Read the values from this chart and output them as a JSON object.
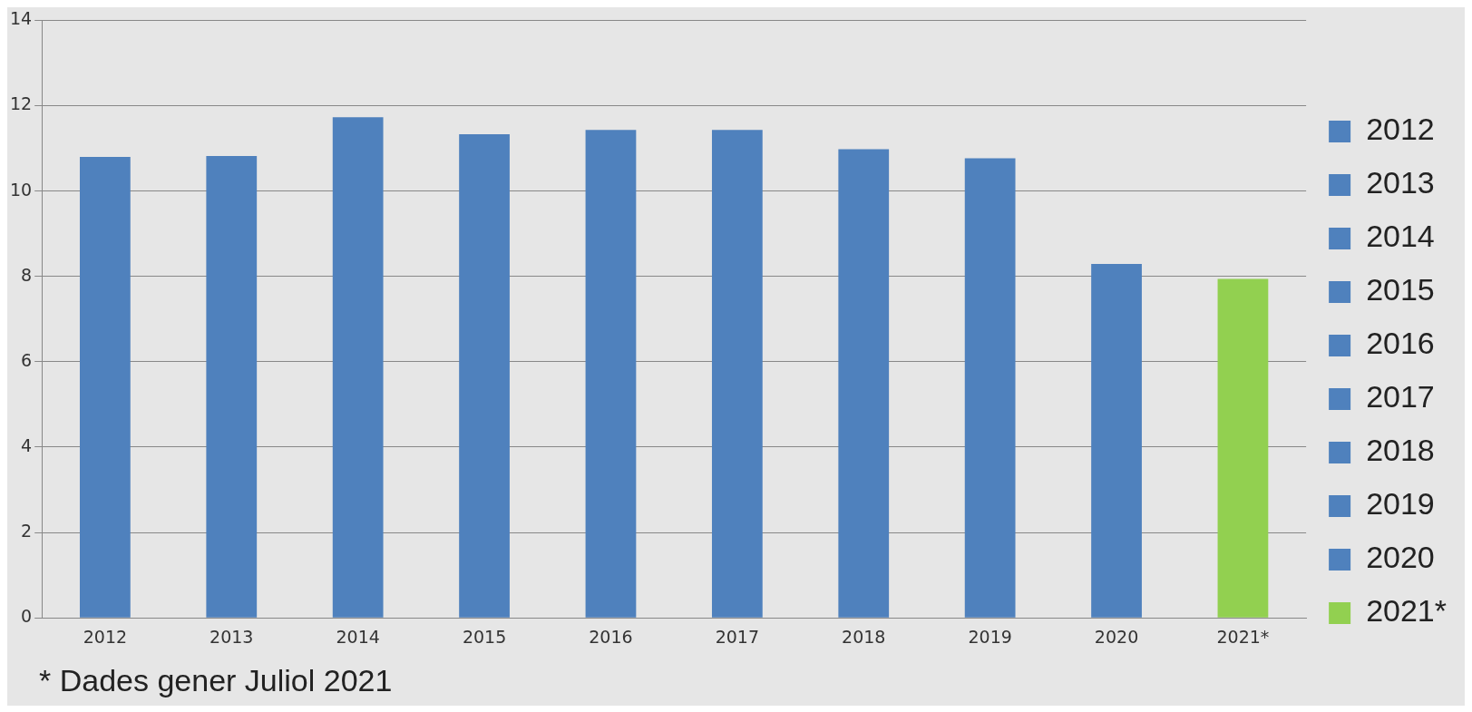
{
  "chart_data": {
    "type": "bar",
    "categories": [
      "2012",
      "2013",
      "2014",
      "2015",
      "2016",
      "2017",
      "2018",
      "2019",
      "2020",
      "2021*"
    ],
    "series": [
      {
        "name": "2012",
        "color": "#4f81bd",
        "values": [
          10.8,
          null,
          null,
          null,
          null,
          null,
          null,
          null,
          null,
          null
        ]
      },
      {
        "name": "2013",
        "color": "#4f81bd",
        "values": [
          null,
          10.82,
          null,
          null,
          null,
          null,
          null,
          null,
          null,
          null
        ]
      },
      {
        "name": "2014",
        "color": "#4f81bd",
        "values": [
          null,
          null,
          11.73,
          null,
          null,
          null,
          null,
          null,
          null,
          null
        ]
      },
      {
        "name": "2015",
        "color": "#4f81bd",
        "values": [
          null,
          null,
          null,
          11.33,
          null,
          null,
          null,
          null,
          null,
          null
        ]
      },
      {
        "name": "2016",
        "color": "#4f81bd",
        "values": [
          null,
          null,
          null,
          null,
          11.43,
          null,
          null,
          null,
          null,
          null
        ]
      },
      {
        "name": "2017",
        "color": "#4f81bd",
        "values": [
          null,
          null,
          null,
          null,
          null,
          11.43,
          null,
          null,
          null,
          null
        ]
      },
      {
        "name": "2018",
        "color": "#4f81bd",
        "values": [
          null,
          null,
          null,
          null,
          null,
          null,
          10.98,
          null,
          null,
          null
        ]
      },
      {
        "name": "2019",
        "color": "#4f81bd",
        "values": [
          null,
          null,
          null,
          null,
          null,
          null,
          null,
          10.77,
          null,
          null
        ]
      },
      {
        "name": "2020",
        "color": "#4f81bd",
        "values": [
          null,
          null,
          null,
          null,
          null,
          null,
          null,
          null,
          8.29,
          null
        ]
      },
      {
        "name": "2021*",
        "color": "#92d050",
        "values": [
          null,
          null,
          null,
          null,
          null,
          null,
          null,
          null,
          null,
          7.94
        ]
      }
    ],
    "ylim": [
      0,
      14
    ],
    "yticks": [
      0,
      2,
      4,
      6,
      8,
      10,
      12,
      14
    ],
    "grid": "y",
    "legend": "right",
    "annotations": [
      "* Dades gener Juliol 2021"
    ]
  }
}
